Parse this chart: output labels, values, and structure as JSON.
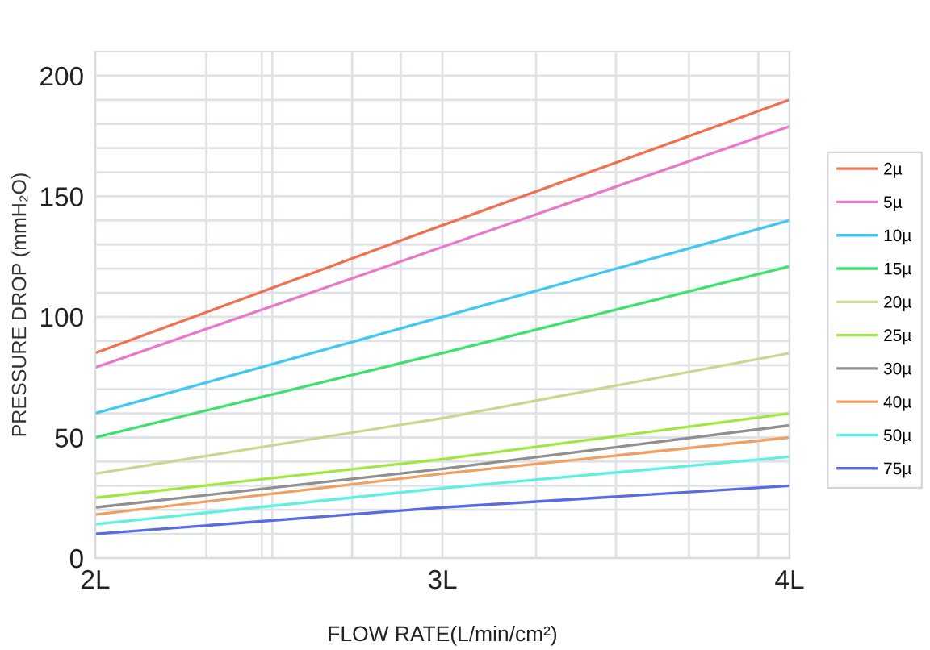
{
  "chart_data": {
    "type": "line",
    "xlabel": "FLOW RATE(L/min/cm²)",
    "ylabel": "PRESSURE DROP (mmH₂O)",
    "x": [
      2,
      3,
      4
    ],
    "xlim": [
      2,
      4
    ],
    "xticks": [
      {
        "value": 2,
        "label": "2L"
      },
      {
        "value": 2.32,
        "label": null
      },
      {
        "value": 2.48,
        "label": null
      },
      {
        "value": 2.51,
        "label": null
      },
      {
        "value": 2.74,
        "label": null
      },
      {
        "value": 2.88,
        "label": null
      },
      {
        "value": 3,
        "label": "3L"
      },
      {
        "value": 3.27,
        "label": null
      },
      {
        "value": 3.5,
        "label": null
      },
      {
        "value": 3.71,
        "label": null
      },
      {
        "value": 3.91,
        "label": null
      },
      {
        "value": 4,
        "label": "4L"
      }
    ],
    "ylim": [
      0,
      210
    ],
    "yticks": [
      0,
      {
        "value": 10,
        "label": null
      },
      {
        "value": 20,
        "label": null
      },
      {
        "value": 30,
        "label": null
      },
      {
        "value": 40,
        "label": null
      },
      50,
      {
        "value": 60,
        "label": null
      },
      {
        "value": 70,
        "label": null
      },
      {
        "value": 80,
        "label": null
      },
      {
        "value": 90,
        "label": null
      },
      100,
      {
        "value": 110,
        "label": null
      },
      {
        "value": 120,
        "label": null
      },
      {
        "value": 130,
        "label": null
      },
      {
        "value": 140,
        "label": null
      },
      150,
      {
        "value": 160,
        "label": null
      },
      {
        "value": 170,
        "label": null
      },
      {
        "value": 180,
        "label": null
      },
      {
        "value": 190,
        "label": null
      },
      200
    ],
    "grid": true,
    "legend": "right",
    "series": [
      {
        "name": "2µ",
        "color": "#f07050",
        "values": [
          85,
          138,
          190
        ]
      },
      {
        "name": "5µ",
        "color": "#e878c8",
        "values": [
          79,
          129,
          179
        ]
      },
      {
        "name": "10µ",
        "color": "#40c8f0",
        "values": [
          60,
          100,
          140
        ]
      },
      {
        "name": "15µ",
        "color": "#40e070",
        "values": [
          50,
          85,
          121
        ]
      },
      {
        "name": "20µ",
        "color": "#c8d890",
        "values": [
          35,
          58,
          85
        ]
      },
      {
        "name": "25µ",
        "color": "#a0e840",
        "values": [
          25,
          41,
          60
        ]
      },
      {
        "name": "30µ",
        "color": "#909090",
        "values": [
          21,
          37,
          55
        ]
      },
      {
        "name": "40µ",
        "color": "#f0a060",
        "values": [
          18,
          35,
          50
        ]
      },
      {
        "name": "50µ",
        "color": "#60f0e0",
        "values": [
          14,
          29,
          42
        ]
      },
      {
        "name": "75µ",
        "color": "#5a6ae0",
        "values": [
          10,
          21,
          30
        ]
      }
    ]
  }
}
